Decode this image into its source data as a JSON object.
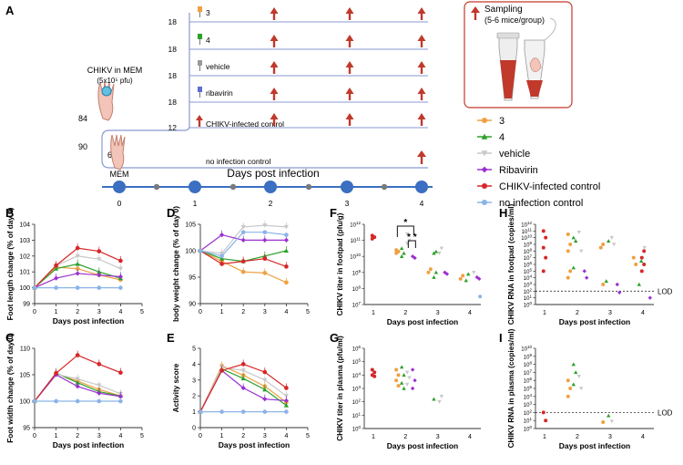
{
  "colors": {
    "cpd3": "#f0a040",
    "cpd4": "#2ca02c",
    "vehicle": "#c8c8c8",
    "ribavirin": "#9b30d0",
    "chikv": "#d62728",
    "noinf": "#8ab4e8",
    "timeline_node": "#3a6fc1",
    "arrow": "#c0392b",
    "bracket": "#8a9ad0"
  },
  "panel_labels": [
    "A",
    "B",
    "C",
    "D",
    "E",
    "F",
    "G",
    "H",
    "I"
  ],
  "schematic": {
    "chikv_label": "CHIKV in MEM",
    "chikv_dose": "(5x10⁵ pfu)",
    "mem_label": "MEM",
    "total": "90",
    "infected": "84",
    "uninfected": "6",
    "groups": [
      {
        "n": "18",
        "label": "3",
        "icon": "syringe-orange"
      },
      {
        "n": "18",
        "label": "4",
        "icon": "syringe-green"
      },
      {
        "n": "18",
        "label": "vehicle",
        "icon": "syringe-grey"
      },
      {
        "n": "18",
        "label": "ribavirin",
        "icon": "syringe-purple"
      },
      {
        "n": "12",
        "label": "CHIKV-infected control",
        "icon": "arrow"
      }
    ],
    "noinf_label": "no infection control",
    "timeline_title": "Days post infection",
    "timeline_days": [
      "0",
      "1",
      "2",
      "3",
      "4"
    ],
    "sampling_title": "Sampling",
    "sampling_sub": "(5-6 mice/group)"
  },
  "legend": [
    {
      "label": "3",
      "marker": "circle",
      "color": "#f0a040"
    },
    {
      "label": "4",
      "marker": "triangle",
      "color": "#2ca02c"
    },
    {
      "label": "vehicle",
      "marker": "tri-down",
      "color": "#c8c8c8"
    },
    {
      "label": "Ribavirin",
      "marker": "diamond",
      "color": "#9b30d0"
    },
    {
      "label": "CHIKV-infected control",
      "marker": "circle",
      "color": "#d62728"
    },
    {
      "label": "no infection control",
      "marker": "circle",
      "color": "#8ab4e8"
    }
  ],
  "chart_data": [
    {
      "id": "B",
      "type": "line",
      "xlabel": "Days post infection",
      "ylabel": "Foot length change (% of day 0)",
      "x": [
        0,
        1,
        2,
        3,
        4
      ],
      "xlim": [
        0,
        5
      ],
      "ylim": [
        99,
        104
      ],
      "yticks": [
        99,
        100,
        101,
        102,
        103,
        104
      ],
      "series": [
        {
          "name": "3",
          "values": [
            100,
            101.3,
            101.2,
            100.8,
            100.5
          ]
        },
        {
          "name": "4",
          "values": [
            100,
            101.2,
            101.5,
            101.0,
            100.6
          ]
        },
        {
          "name": "vehicle",
          "values": [
            100,
            101.4,
            102.0,
            101.8,
            101.2
          ]
        },
        {
          "name": "Ribavirin",
          "values": [
            100,
            100.6,
            100.9,
            100.8,
            100.7
          ]
        },
        {
          "name": "CHIKV-infected control",
          "values": [
            100,
            101.4,
            102.5,
            102.3,
            101.7
          ]
        },
        {
          "name": "no infection control",
          "values": [
            100,
            100,
            100,
            100,
            100
          ]
        }
      ]
    },
    {
      "id": "C",
      "type": "line",
      "xlabel": "Days post infection",
      "ylabel": "Foot width change (% of day 0)",
      "x": [
        0,
        1,
        2,
        3,
        4
      ],
      "xlim": [
        0,
        5
      ],
      "ylim": [
        95,
        110
      ],
      "yticks": [
        95,
        100,
        105,
        110
      ],
      "series": [
        {
          "name": "3",
          "values": [
            100,
            105.2,
            103.8,
            102.2,
            101.0
          ]
        },
        {
          "name": "4",
          "values": [
            100,
            105.3,
            103.5,
            101.8,
            101.0
          ]
        },
        {
          "name": "vehicle",
          "values": [
            100,
            105.1,
            104.2,
            103.0,
            101.4
          ]
        },
        {
          "name": "Ribavirin",
          "values": [
            100,
            105.0,
            102.8,
            101.5,
            100.9
          ]
        },
        {
          "name": "CHIKV-infected control",
          "values": [
            100,
            105.3,
            108.7,
            107.0,
            105.4
          ]
        },
        {
          "name": "no infection control",
          "values": [
            100,
            100,
            100,
            100,
            100
          ]
        }
      ]
    },
    {
      "id": "D",
      "type": "line",
      "xlabel": "",
      "ylabel": "body weight change (% of day 0)",
      "x": [
        0,
        1,
        2,
        3,
        4
      ],
      "xlim": [
        0,
        5
      ],
      "ylim": [
        90,
        105
      ],
      "yticks": [
        90,
        95,
        100,
        105
      ],
      "series": [
        {
          "name": "3",
          "values": [
            100,
            98.0,
            96.0,
            95.8,
            94.0
          ]
        },
        {
          "name": "4",
          "values": [
            100,
            98.5,
            98.0,
            99.0,
            100.0
          ]
        },
        {
          "name": "vehicle",
          "values": [
            100,
            99.5,
            104.5,
            104.8,
            104.5
          ]
        },
        {
          "name": "Ribavirin",
          "values": [
            100,
            103.0,
            102.0,
            102.0,
            102.0
          ]
        },
        {
          "name": "CHIKV-infected control",
          "values": [
            100,
            97.5,
            98.0,
            98.5,
            97.0
          ]
        },
        {
          "name": "no infection control",
          "values": [
            100,
            99.0,
            103.5,
            103.5,
            103.0
          ]
        }
      ]
    },
    {
      "id": "E",
      "type": "line",
      "xlabel": "Days post infection",
      "ylabel": "Activity score",
      "x": [
        0,
        1,
        2,
        3,
        4
      ],
      "xlim": [
        0,
        5
      ],
      "ylim": [
        0,
        5
      ],
      "yticks": [
        0,
        1,
        2,
        3,
        4,
        5
      ],
      "series": [
        {
          "name": "3",
          "values": [
            1,
            3.9,
            3.3,
            2.6,
            1.6
          ]
        },
        {
          "name": "4",
          "values": [
            1,
            3.7,
            3.1,
            2.4,
            1.4
          ]
        },
        {
          "name": "vehicle",
          "values": [
            1,
            3.8,
            3.6,
            3.0,
            2.0
          ]
        },
        {
          "name": "Ribavirin",
          "values": [
            1,
            3.6,
            2.5,
            1.8,
            1.7
          ]
        },
        {
          "name": "CHIKV-infected control",
          "values": [
            1,
            3.6,
            4.0,
            3.5,
            2.5
          ]
        },
        {
          "name": "no infection control",
          "values": [
            1,
            1,
            1,
            1,
            1
          ]
        }
      ]
    },
    {
      "id": "F",
      "type": "scatter",
      "xlabel": "Days post infection",
      "ylabel": "CHIKV titer in footpad (pfu/g)",
      "categories": [
        "1",
        "2",
        "3",
        "4"
      ],
      "ylim_log10": [
        7,
        12
      ],
      "lod_text": "",
      "significance": [
        "*",
        "* *"
      ],
      "series": [
        {
          "name": "CHIKV-infected control",
          "points": [
            [
              1,
              11.3
            ],
            [
              1,
              11.2
            ],
            [
              1,
              11.1
            ]
          ]
        },
        {
          "name": "3",
          "points": [
            [
              2,
              10.4
            ],
            [
              2,
              10.3
            ],
            [
              2,
              10.2
            ],
            [
              3,
              9.2
            ],
            [
              3,
              9.0
            ],
            [
              4,
              8.8
            ],
            [
              4,
              8.6
            ]
          ]
        },
        {
          "name": "4",
          "points": [
            [
              2,
              10.5
            ],
            [
              2,
              10.2
            ],
            [
              2,
              10.0
            ],
            [
              3,
              10.3
            ],
            [
              3,
              10.2
            ],
            [
              3,
              9.0
            ],
            [
              3,
              8.7
            ],
            [
              4,
              8.9
            ],
            [
              4,
              8.5
            ]
          ]
        },
        {
          "name": "vehicle",
          "points": [
            [
              2,
              11.4
            ],
            [
              2,
              11.0
            ],
            [
              2,
              10.8
            ],
            [
              3,
              10.5
            ],
            [
              3,
              10.2
            ],
            [
              4,
              9.0
            ]
          ]
        },
        {
          "name": "Ribavirin",
          "points": [
            [
              2,
              10.0
            ],
            [
              2,
              9.9
            ],
            [
              3,
              9.0
            ],
            [
              3,
              8.9
            ],
            [
              4,
              8.7
            ],
            [
              4,
              8.6
            ]
          ]
        },
        {
          "name": "no infection control",
          "points": [
            [
              4.35,
              7.5
            ]
          ]
        }
      ]
    },
    {
      "id": "G",
      "type": "scatter",
      "xlabel": "Days post infection",
      "ylabel": "CHIKV titer in plasma (pfu/ml)",
      "categories": [
        "1",
        "2",
        "3",
        "4"
      ],
      "ylim_log10": [
        0,
        6
      ],
      "series": [
        {
          "name": "CHIKV-infected control",
          "points": [
            [
              1,
              4.4
            ],
            [
              1,
              4.2
            ],
            [
              1,
              4.0
            ],
            [
              1,
              3.9
            ]
          ]
        },
        {
          "name": "3",
          "points": [
            [
              2,
              4.4
            ],
            [
              2,
              4.0
            ],
            [
              2,
              3.6
            ],
            [
              2,
              3.2
            ]
          ]
        },
        {
          "name": "4",
          "points": [
            [
              2,
              4.6
            ],
            [
              2,
              4.0
            ],
            [
              2,
              3.4
            ],
            [
              2,
              3.0
            ],
            [
              3,
              2.2
            ]
          ]
        },
        {
          "name": "vehicle",
          "points": [
            [
              2,
              4.2
            ],
            [
              2,
              3.8
            ],
            [
              2,
              3.3
            ],
            [
              3,
              2.4
            ],
            [
              3,
              2.0
            ]
          ]
        },
        {
          "name": "Ribavirin",
          "points": [
            [
              2,
              4.4
            ],
            [
              2,
              3.6
            ],
            [
              2,
              3.0
            ]
          ]
        }
      ]
    },
    {
      "id": "H",
      "type": "scatter",
      "xlabel": "Days post infection",
      "ylabel": "CHIKV RNA in footpad (copies/ml)",
      "categories": [
        "1",
        "2",
        "3",
        "4"
      ],
      "ylim_log10": [
        0,
        12
      ],
      "lod_text": "LOD",
      "series": [
        {
          "name": "CHIKV-infected control",
          "points": [
            [
              1,
              11.0
            ],
            [
              1,
              10.0
            ],
            [
              1,
              8.5
            ],
            [
              1,
              7.0
            ],
            [
              1,
              5.0
            ],
            [
              4,
              8.0
            ],
            [
              4,
              7.0
            ],
            [
              4,
              6.0
            ],
            [
              4,
              5.0
            ]
          ]
        },
        {
          "name": "3",
          "points": [
            [
              2,
              10.5
            ],
            [
              2,
              9.0
            ],
            [
              2,
              8.0
            ],
            [
              2,
              5.0
            ],
            [
              2,
              4.0
            ],
            [
              3,
              9.0
            ],
            [
              3,
              8.5
            ],
            [
              3,
              3.0
            ],
            [
              4,
              7.0
            ],
            [
              4,
              6.0
            ]
          ]
        },
        {
          "name": "4",
          "points": [
            [
              2,
              10.0
            ],
            [
              2,
              9.5
            ],
            [
              2,
              5.5
            ],
            [
              3,
              9.5
            ],
            [
              3,
              3.5
            ],
            [
              4,
              6.5
            ],
            [
              4,
              3.0
            ]
          ]
        },
        {
          "name": "vehicle",
          "points": [
            [
              2,
              10.8
            ],
            [
              2,
              8.0
            ],
            [
              3,
              10.0
            ],
            [
              3,
              9.0
            ],
            [
              4,
              8.5
            ]
          ]
        },
        {
          "name": "Ribavirin",
          "points": [
            [
              2,
              5.0
            ],
            [
              2,
              4.0
            ],
            [
              3,
              3.0
            ],
            [
              3,
              1.8
            ],
            [
              4,
              1.0
            ]
          ]
        }
      ]
    },
    {
      "id": "I",
      "type": "scatter",
      "xlabel": "Days post infection",
      "ylabel": "CHIKV RNA in plasma (copies/ml)",
      "categories": [
        "1",
        "2",
        "3",
        "4"
      ],
      "ylim_log10": [
        0,
        10
      ],
      "lod_text": "LOD",
      "series": [
        {
          "name": "CHIKV-infected control",
          "points": [
            [
              1,
              2.0
            ],
            [
              1,
              1.0
            ]
          ]
        },
        {
          "name": "3",
          "points": [
            [
              2,
              6.0
            ],
            [
              2,
              5.0
            ],
            [
              2,
              4.0
            ],
            [
              3,
              0.8
            ]
          ]
        },
        {
          "name": "4",
          "points": [
            [
              2,
              8.0
            ],
            [
              2,
              7.0
            ],
            [
              2,
              5.5
            ],
            [
              3,
              1.6
            ]
          ]
        },
        {
          "name": "vehicle",
          "points": [
            [
              2,
              6.5
            ],
            [
              2,
              5.0
            ],
            [
              3,
              0.9
            ]
          ]
        }
      ]
    }
  ]
}
